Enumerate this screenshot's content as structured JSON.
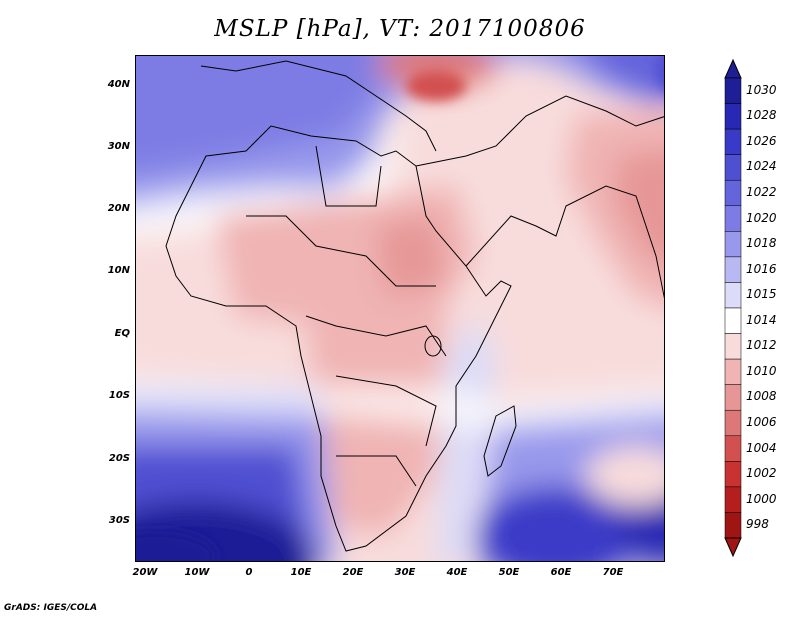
{
  "title": "MSLP [hPa], VT: 2017100806",
  "credit": "GrADS: IGES/COLA",
  "map": {
    "variable": "MSLP",
    "units": "hPa",
    "valid_time": "2017100806",
    "lon_range": [
      -22,
      80
    ],
    "lat_range": [
      -37,
      45
    ],
    "lat_ticks": [
      {
        "value": 40,
        "label": "40N"
      },
      {
        "value": 30,
        "label": "30N"
      },
      {
        "value": 20,
        "label": "20N"
      },
      {
        "value": 10,
        "label": "10N"
      },
      {
        "value": 0,
        "label": "EQ"
      },
      {
        "value": -10,
        "label": "10S"
      },
      {
        "value": -20,
        "label": "20S"
      },
      {
        "value": -30,
        "label": "30S"
      }
    ],
    "lon_ticks": [
      {
        "value": -20,
        "label": "20W"
      },
      {
        "value": -10,
        "label": "10W"
      },
      {
        "value": 0,
        "label": "0"
      },
      {
        "value": 10,
        "label": "10E"
      },
      {
        "value": 20,
        "label": "20E"
      },
      {
        "value": 30,
        "label": "30E"
      },
      {
        "value": 40,
        "label": "40E"
      },
      {
        "value": 50,
        "label": "50E"
      },
      {
        "value": 60,
        "label": "60E"
      },
      {
        "value": 70,
        "label": "70E"
      }
    ]
  },
  "colorbar": {
    "levels": [
      "1030",
      "1028",
      "1026",
      "1024",
      "1022",
      "1020",
      "1018",
      "1016",
      "1015",
      "1014",
      "1012",
      "1010",
      "1008",
      "1006",
      "1004",
      "1002",
      "1000",
      "998"
    ],
    "colors": [
      "#1e1e96",
      "#2828b4",
      "#3a3ac8",
      "#4f4fd2",
      "#6464dc",
      "#7c7ce4",
      "#9898ec",
      "#b8b8f2",
      "#dcdcf8",
      "#ffffff",
      "#f8dcdc",
      "#f0b4b4",
      "#e69696",
      "#dc7878",
      "#d25050",
      "#c83232",
      "#b41e1e",
      "#a01414"
    ]
  }
}
